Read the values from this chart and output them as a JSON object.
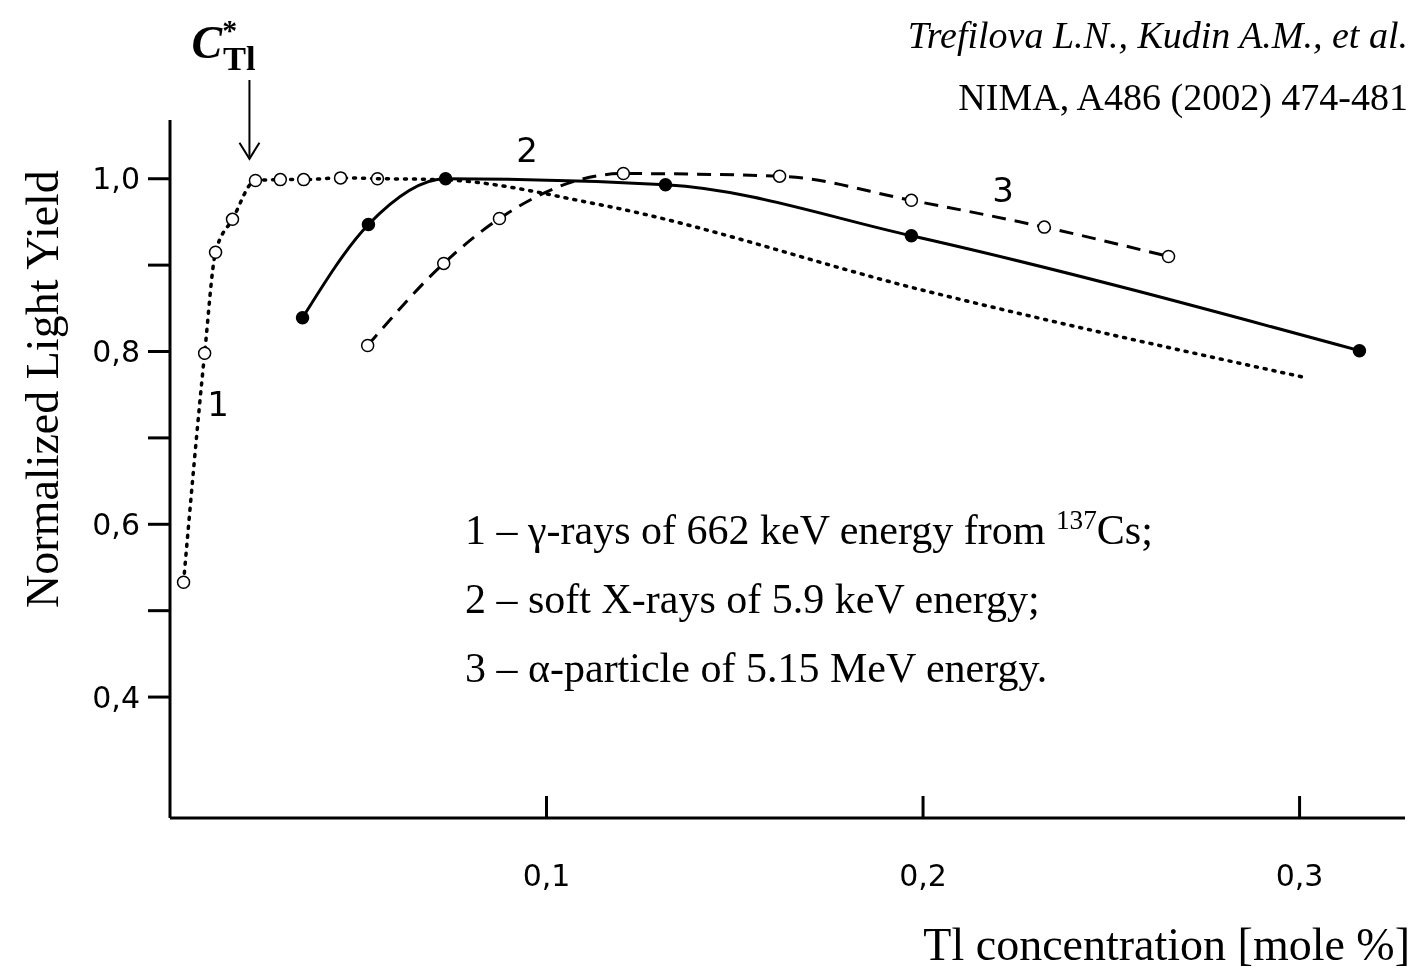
{
  "chart_data": {
    "type": "line",
    "xlabel": "Tl concentration [mole %]",
    "ylabel": "Normalized Light Yield",
    "xlim": [
      0,
      0.328
    ],
    "ylim": [
      0.26,
      1.068
    ],
    "xticks": [
      {
        "value": 0.1,
        "label": "0,1"
      },
      {
        "value": 0.2,
        "label": "0,2"
      },
      {
        "value": 0.3,
        "label": "0,3"
      }
    ],
    "yticks": [
      {
        "value": 0.4,
        "label": "0,4"
      },
      {
        "value": 0.6,
        "label": "0,6"
      },
      {
        "value": 0.8,
        "label": "0,8"
      },
      {
        "value": 1.0,
        "label": "1,0"
      }
    ],
    "grid": false,
    "series": [
      {
        "color": "#000000",
        "line_style": "dotted",
        "marker": "circle",
        "x": [
          0.0036,
          0.0092,
          0.0121,
          0.0166,
          0.0227,
          0.0293,
          0.0355,
          0.0453,
          0.0551
        ],
        "values": [
          0.533,
          0.798,
          0.915,
          0.953,
          0.998,
          0.999,
          0.999,
          1.001,
          1.0
        ]
      },
      {
        "color": "#000000",
        "line_style": "dotted",
        "marker": "none",
        "x": [
          0.0551,
          0.0717,
          0.1141,
          0.1999,
          0.3013
        ],
        "values": [
          1.0,
          0.999,
          0.97,
          0.871,
          0.77
        ]
      },
      {
        "color": "#000000",
        "line_style": "solid",
        "marker": "circle",
        "x": [
          0.0352,
          0.0527,
          0.0732,
          0.1316,
          0.1969,
          0.3159
        ],
        "values": [
          0.839,
          0.947,
          1.0,
          0.993,
          0.934,
          0.801
        ]
      },
      {
        "color": "#000000",
        "line_style": "dashed",
        "marker": "circle",
        "x": [
          0.0525,
          0.0727,
          0.0875,
          0.1204,
          0.1619,
          0.1969,
          0.2322,
          0.2652
        ],
        "values": [
          0.807,
          0.902,
          0.954,
          1.006,
          1.003,
          0.975,
          0.944,
          0.91
        ]
      }
    ],
    "annotations": [
      {
        "text": "C$^{*}$$_{Tl}$",
        "x": 0.0211,
        "y": 1.0
      },
      "1",
      "2",
      "3",
      "Trefilova L.N., Kudin A.M., et al.",
      "NIMA, A486 (2002) 474-481",
      "1 – γ-rays of 662 keV energy from $^{137}$Cs;",
      "2 – soft X-rays of 5.9 keV energy;",
      "3 – α-particle of 5.15 MeV energy."
    ]
  }
}
